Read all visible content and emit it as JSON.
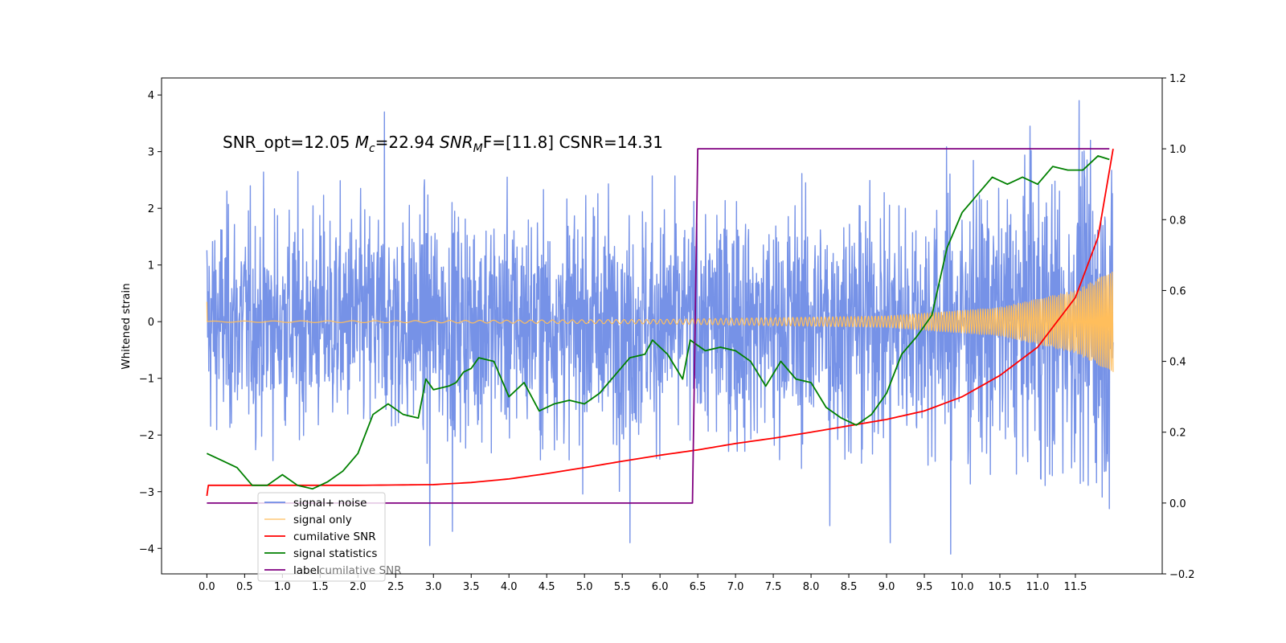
{
  "chart_data": {
    "type": "line",
    "title": "",
    "xlabel": "",
    "ylabel": "Whitened strain",
    "annotation": "SNR_opt=12.05 M_c=22.94  SNR_MF=[11.8]   CSNR=14.31",
    "annotation_parts": {
      "p1": "SNR_opt=12.05 ",
      "p2_base": "M",
      "p2_sub": "c",
      "p3": "=22.94  ",
      "p4_base": "SNR",
      "p4_sub": "M",
      "p5": "F=[11.8]   CSNR=14.31"
    },
    "xlim": [
      -0.6,
      12.65
    ],
    "ylim": [
      -4.45,
      4.3
    ],
    "y2lim": [
      -0.2,
      1.2
    ],
    "x_ticks": [
      "0.0",
      "0.5",
      "1.0",
      "1.5",
      "2.0",
      "2.5",
      "3.0",
      "3.5",
      "4.0",
      "4.5",
      "5.0",
      "5.5",
      "6.0",
      "6.5",
      "7.0",
      "7.5",
      "8.0",
      "8.5",
      "9.0",
      "9.5",
      "10.0",
      "10.5",
      "11.0",
      "11.5"
    ],
    "y_ticks": [
      "−4",
      "−3",
      "−2",
      "−1",
      "0",
      "1",
      "2",
      "3",
      "4"
    ],
    "y2_ticks": [
      "−0.2",
      "0.0",
      "0.2",
      "0.4",
      "0.6",
      "0.8",
      "1.0",
      "1.2"
    ],
    "grid": false,
    "legend_position": "lower-left",
    "legend_entries": [
      "signal+ noise",
      "signal only",
      "cumilative SNR",
      "signal statistics",
      "label"
    ],
    "legend_overlap_text": "cumilative SNR",
    "colors": {
      "noise": "#6f8ce6",
      "signal": "#ffbe5c",
      "cumulative": "#ff0000",
      "statistics": "#008000",
      "label": "#800080"
    },
    "series": [
      {
        "name": "signal+ noise",
        "axis": "left",
        "generator": "noise",
        "x_range": [
          0.0,
          12.0
        ],
        "std_at_x": [
          [
            0.0,
            0.95
          ],
          [
            9.0,
            1.05
          ],
          [
            12.0,
            1.4
          ]
        ],
        "extreme_spikes": [
          [
            2.35,
            3.7
          ],
          [
            2.95,
            -3.95
          ],
          [
            3.25,
            -3.7
          ],
          [
            5.6,
            -3.9
          ],
          [
            8.25,
            -3.6
          ],
          [
            9.05,
            -3.9
          ],
          [
            9.85,
            -4.1
          ],
          [
            10.9,
            3.45
          ],
          [
            11.55,
            3.9
          ],
          [
            11.7,
            3.2
          ],
          [
            11.95,
            -3.3
          ]
        ]
      },
      {
        "name": "signal only",
        "axis": "left",
        "generator": "chirp",
        "x_range": [
          0.0,
          12.0
        ],
        "amplitude_at_x": [
          [
            0.0,
            0.01
          ],
          [
            3.0,
            0.02
          ],
          [
            6.0,
            0.04
          ],
          [
            9.0,
            0.1
          ],
          [
            10.5,
            0.25
          ],
          [
            11.5,
            0.55
          ],
          [
            12.0,
            0.9
          ]
        ],
        "initial_spike": [
          0.0,
          0.35
        ]
      },
      {
        "name": "cumilative SNR",
        "axis": "right",
        "x": [
          0.0,
          0.02,
          1.0,
          2.0,
          3.0,
          3.5,
          4.0,
          4.5,
          5.0,
          5.5,
          6.0,
          6.5,
          7.0,
          7.5,
          8.0,
          8.5,
          9.0,
          9.5,
          10.0,
          10.5,
          11.0,
          11.5,
          11.8,
          12.0
        ],
        "values": [
          0.02,
          0.05,
          0.05,
          0.05,
          0.052,
          0.058,
          0.068,
          0.083,
          0.1,
          0.118,
          0.135,
          0.15,
          0.168,
          0.183,
          0.2,
          0.218,
          0.236,
          0.26,
          0.3,
          0.36,
          0.44,
          0.58,
          0.75,
          1.0
        ]
      },
      {
        "name": "signal statistics",
        "axis": "right",
        "x": [
          0.0,
          0.2,
          0.4,
          0.6,
          0.8,
          1.0,
          1.2,
          1.4,
          1.6,
          1.8,
          2.0,
          2.2,
          2.4,
          2.6,
          2.8,
          2.9,
          3.0,
          3.2,
          3.3,
          3.4,
          3.5,
          3.6,
          3.8,
          4.0,
          4.2,
          4.4,
          4.6,
          4.8,
          5.0,
          5.2,
          5.4,
          5.6,
          5.8,
          5.9,
          6.1,
          6.3,
          6.4,
          6.6,
          6.8,
          7.0,
          7.2,
          7.4,
          7.6,
          7.8,
          8.0,
          8.2,
          8.4,
          8.6,
          8.8,
          9.0,
          9.2,
          9.4,
          9.6,
          9.8,
          10.0,
          10.2,
          10.4,
          10.6,
          10.8,
          11.0,
          11.2,
          11.4,
          11.6,
          11.8,
          11.95
        ],
        "values": [
          0.14,
          0.12,
          0.1,
          0.05,
          0.05,
          0.08,
          0.05,
          0.04,
          0.06,
          0.09,
          0.14,
          0.25,
          0.28,
          0.25,
          0.24,
          0.35,
          0.32,
          0.33,
          0.34,
          0.37,
          0.38,
          0.41,
          0.4,
          0.3,
          0.34,
          0.26,
          0.28,
          0.29,
          0.28,
          0.31,
          0.36,
          0.41,
          0.42,
          0.46,
          0.42,
          0.35,
          0.46,
          0.43,
          0.44,
          0.43,
          0.4,
          0.33,
          0.4,
          0.35,
          0.34,
          0.27,
          0.24,
          0.22,
          0.25,
          0.31,
          0.42,
          0.47,
          0.53,
          0.72,
          0.82,
          0.87,
          0.92,
          0.9,
          0.92,
          0.9,
          0.95,
          0.94,
          0.94,
          0.98,
          0.97
        ]
      },
      {
        "name": "label",
        "axis": "right",
        "x": [
          0.0,
          6.43,
          6.5,
          11.95
        ],
        "values": [
          0.0,
          0.0,
          1.0,
          1.0
        ]
      }
    ]
  }
}
